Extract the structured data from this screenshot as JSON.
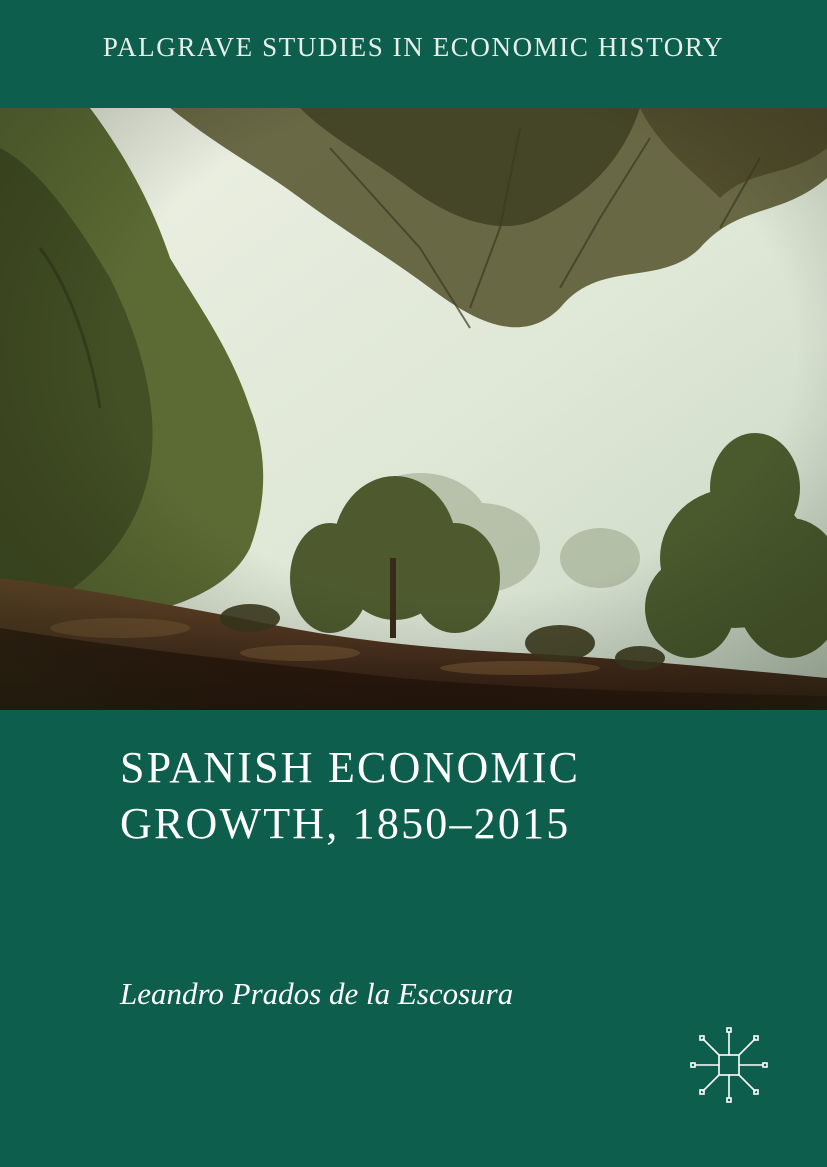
{
  "cover": {
    "series": "PALGRAVE STUDIES IN ECONOMIC HISTORY",
    "title_lines": [
      "SPANISH ECONOMIC",
      "GROWTH, 1850–2015"
    ],
    "author": "Leandro Prados de la Escosura"
  },
  "colors": {
    "band_green": "#0d5e4c",
    "text_white": "#ffffff",
    "sky": "#dfe8d8",
    "foliage": "#4b5a2c",
    "ground": "#4a2c1c"
  },
  "icons": {
    "photo": "forest-landscape-photo",
    "publisher_logo": "palgrave-logo-icon"
  }
}
